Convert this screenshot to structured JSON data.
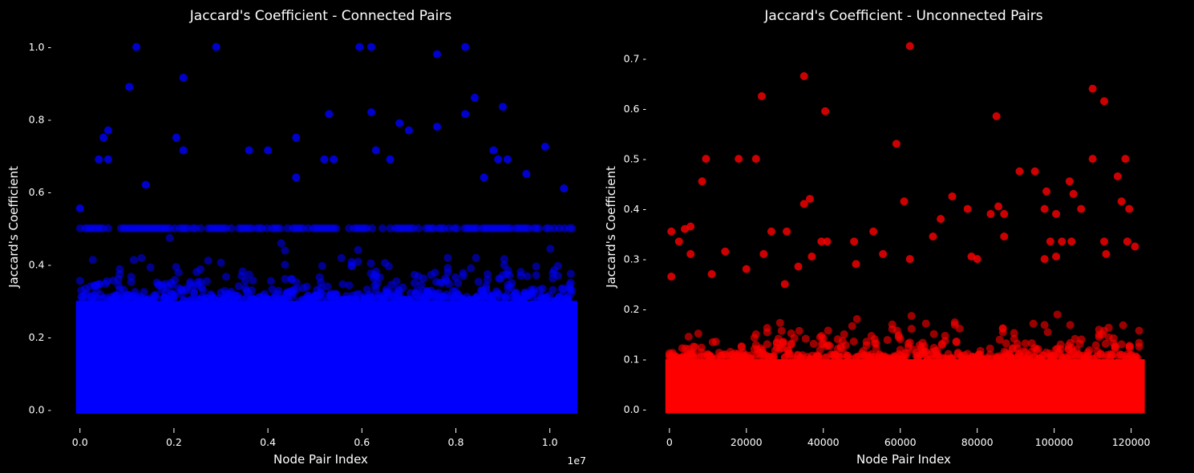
{
  "chart_data": [
    {
      "type": "scatter",
      "title": "Jaccard's Coefficient - Connected Pairs",
      "xlabel": "Node Pair Index",
      "ylabel": "Jaccard's Coefficient",
      "x_offset_label": "1e7",
      "xlim": [
        -0.02,
        1.05
      ],
      "ylim": [
        -0.02,
        1.03
      ],
      "xticks": [
        0.0,
        0.2,
        0.4,
        0.6,
        0.8,
        1.0
      ],
      "xtick_labels": [
        "0.0",
        "0.2",
        "0.4",
        "0.6",
        "0.8",
        "1.0"
      ],
      "yticks": [
        0.0,
        0.2,
        0.4,
        0.6,
        0.8,
        1.0
      ],
      "ytick_labels": [
        "0.0 -",
        "0.2 -",
        "0.4 -",
        "0.6 -",
        "0.8 -",
        "1.0 -"
      ],
      "point_color": "#0000ff",
      "grid": false,
      "x_range_data": [
        0,
        10500000
      ],
      "dense_band_max": 0.3,
      "horizontal_band_y": 0.5,
      "outliers": [
        {
          "x": 0.12,
          "y": 1.0
        },
        {
          "x": 0.29,
          "y": 1.0
        },
        {
          "x": 0.595,
          "y": 1.0
        },
        {
          "x": 0.62,
          "y": 1.0
        },
        {
          "x": 0.82,
          "y": 1.0
        },
        {
          "x": 0.76,
          "y": 0.98
        },
        {
          "x": 0.105,
          "y": 0.89
        },
        {
          "x": 0.22,
          "y": 0.915
        },
        {
          "x": 0.84,
          "y": 0.86
        },
        {
          "x": 0.9,
          "y": 0.835
        },
        {
          "x": 0.53,
          "y": 0.815
        },
        {
          "x": 0.62,
          "y": 0.82
        },
        {
          "x": 0.82,
          "y": 0.815
        },
        {
          "x": 0.68,
          "y": 0.79
        },
        {
          "x": 0.76,
          "y": 0.78
        },
        {
          "x": 0.06,
          "y": 0.77
        },
        {
          "x": 0.05,
          "y": 0.75
        },
        {
          "x": 0.205,
          "y": 0.75
        },
        {
          "x": 0.46,
          "y": 0.75
        },
        {
          "x": 0.99,
          "y": 0.725
        },
        {
          "x": 0.7,
          "y": 0.77
        },
        {
          "x": 0.22,
          "y": 0.715
        },
        {
          "x": 0.36,
          "y": 0.715
        },
        {
          "x": 0.4,
          "y": 0.715
        },
        {
          "x": 0.63,
          "y": 0.715
        },
        {
          "x": 0.88,
          "y": 0.715
        },
        {
          "x": 0.04,
          "y": 0.69
        },
        {
          "x": 0.06,
          "y": 0.69
        },
        {
          "x": 0.52,
          "y": 0.69
        },
        {
          "x": 0.54,
          "y": 0.69
        },
        {
          "x": 0.66,
          "y": 0.69
        },
        {
          "x": 0.89,
          "y": 0.69
        },
        {
          "x": 0.91,
          "y": 0.69
        },
        {
          "x": 0.14,
          "y": 0.62
        },
        {
          "x": 0.95,
          "y": 0.65
        },
        {
          "x": 1.03,
          "y": 0.61
        },
        {
          "x": 0.0,
          "y": 0.555
        },
        {
          "x": 0.86,
          "y": 0.64
        },
        {
          "x": 0.46,
          "y": 0.64
        }
      ]
    },
    {
      "type": "scatter",
      "title": "Jaccard's Coefficient - Unconnected Pairs",
      "xlabel": "Node Pair Index",
      "ylabel": "Jaccard's Coefficient",
      "xlim": [
        -1000,
        123000
      ],
      "ylim": [
        -0.015,
        0.745
      ],
      "xticks": [
        0,
        20000,
        40000,
        60000,
        80000,
        100000,
        120000
      ],
      "xtick_labels": [
        "0",
        "20000",
        "40000",
        "60000",
        "80000",
        "100000",
        "120000"
      ],
      "yticks": [
        0.0,
        0.1,
        0.2,
        0.3,
        0.4,
        0.5,
        0.6,
        0.7
      ],
      "ytick_labels": [
        "0.0 -",
        "0.1 -",
        "0.2 -",
        "0.3 -",
        "0.4 -",
        "0.5 -",
        "0.6 -",
        "0.7 -"
      ],
      "point_color": "#ff0000",
      "grid": false,
      "x_range_data": [
        0,
        122500
      ],
      "dense_band_max": 0.1,
      "outliers": [
        {
          "x": 62500,
          "y": 0.725
        },
        {
          "x": 35000,
          "y": 0.665
        },
        {
          "x": 110000,
          "y": 0.64
        },
        {
          "x": 24000,
          "y": 0.625
        },
        {
          "x": 113000,
          "y": 0.615
        },
        {
          "x": 40500,
          "y": 0.595
        },
        {
          "x": 85000,
          "y": 0.585
        },
        {
          "x": 59000,
          "y": 0.53
        },
        {
          "x": 9500,
          "y": 0.5
        },
        {
          "x": 18000,
          "y": 0.5
        },
        {
          "x": 22500,
          "y": 0.5
        },
        {
          "x": 110000,
          "y": 0.5
        },
        {
          "x": 118500,
          "y": 0.5
        },
        {
          "x": 91000,
          "y": 0.475
        },
        {
          "x": 95000,
          "y": 0.475
        },
        {
          "x": 116500,
          "y": 0.465
        },
        {
          "x": 104000,
          "y": 0.455
        },
        {
          "x": 8500,
          "y": 0.455
        },
        {
          "x": 98000,
          "y": 0.435
        },
        {
          "x": 105000,
          "y": 0.43
        },
        {
          "x": 73500,
          "y": 0.425
        },
        {
          "x": 36500,
          "y": 0.42
        },
        {
          "x": 61000,
          "y": 0.415
        },
        {
          "x": 35000,
          "y": 0.41
        },
        {
          "x": 117500,
          "y": 0.415
        },
        {
          "x": 85500,
          "y": 0.405
        },
        {
          "x": 77500,
          "y": 0.4
        },
        {
          "x": 97500,
          "y": 0.4
        },
        {
          "x": 107000,
          "y": 0.4
        },
        {
          "x": 119500,
          "y": 0.4
        },
        {
          "x": 87000,
          "y": 0.39
        },
        {
          "x": 100500,
          "y": 0.39
        },
        {
          "x": 83500,
          "y": 0.39
        },
        {
          "x": 70500,
          "y": 0.38
        },
        {
          "x": 5500,
          "y": 0.365
        },
        {
          "x": 4000,
          "y": 0.36
        },
        {
          "x": 500,
          "y": 0.355
        },
        {
          "x": 26500,
          "y": 0.355
        },
        {
          "x": 30500,
          "y": 0.355
        },
        {
          "x": 53000,
          "y": 0.355
        },
        {
          "x": 87000,
          "y": 0.345
        },
        {
          "x": 68500,
          "y": 0.345
        },
        {
          "x": 2500,
          "y": 0.335
        },
        {
          "x": 39500,
          "y": 0.335
        },
        {
          "x": 41000,
          "y": 0.335
        },
        {
          "x": 48000,
          "y": 0.335
        },
        {
          "x": 99000,
          "y": 0.335
        },
        {
          "x": 102000,
          "y": 0.335
        },
        {
          "x": 104500,
          "y": 0.335
        },
        {
          "x": 113000,
          "y": 0.335
        },
        {
          "x": 119000,
          "y": 0.335
        },
        {
          "x": 121000,
          "y": 0.325
        },
        {
          "x": 14500,
          "y": 0.315
        },
        {
          "x": 5500,
          "y": 0.31
        },
        {
          "x": 24500,
          "y": 0.31
        },
        {
          "x": 55500,
          "y": 0.31
        },
        {
          "x": 78500,
          "y": 0.305
        },
        {
          "x": 37000,
          "y": 0.305
        },
        {
          "x": 100500,
          "y": 0.305
        },
        {
          "x": 113500,
          "y": 0.31
        },
        {
          "x": 97500,
          "y": 0.3
        },
        {
          "x": 62500,
          "y": 0.3
        },
        {
          "x": 33500,
          "y": 0.285
        },
        {
          "x": 20000,
          "y": 0.28
        },
        {
          "x": 48500,
          "y": 0.29
        },
        {
          "x": 80000,
          "y": 0.3
        },
        {
          "x": 500,
          "y": 0.265
        },
        {
          "x": 11000,
          "y": 0.27
        },
        {
          "x": 30000,
          "y": 0.25
        }
      ]
    }
  ]
}
